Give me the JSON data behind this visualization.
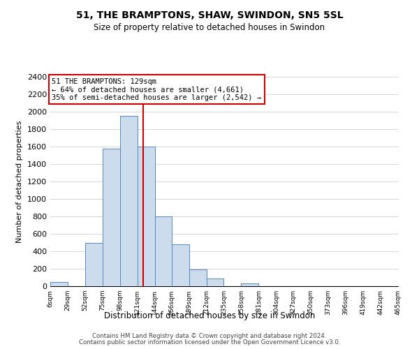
{
  "title": "51, THE BRAMPTONS, SHAW, SWINDON, SN5 5SL",
  "subtitle": "Size of property relative to detached houses in Swindon",
  "xlabel": "Distribution of detached houses by size in Swindon",
  "ylabel": "Number of detached properties",
  "bin_labels": [
    "6sqm",
    "29sqm",
    "52sqm",
    "75sqm",
    "98sqm",
    "121sqm",
    "144sqm",
    "166sqm",
    "189sqm",
    "212sqm",
    "235sqm",
    "258sqm",
    "281sqm",
    "304sqm",
    "327sqm",
    "350sqm",
    "373sqm",
    "396sqm",
    "419sqm",
    "442sqm",
    "465sqm"
  ],
  "bar_heights": [
    50,
    0,
    500,
    1580,
    1950,
    1600,
    800,
    480,
    190,
    90,
    0,
    35,
    0,
    0,
    0,
    0,
    0,
    0,
    0,
    0
  ],
  "bar_color": "#ccdcec",
  "bar_edge_color": "#5588bb",
  "property_line_x": 129,
  "property_line_color": "#cc0000",
  "annotation_title": "51 THE BRAMPTONS: 129sqm",
  "annotation_line1": "← 64% of detached houses are smaller (4,661)",
  "annotation_line2": "35% of semi-detached houses are larger (2,542) →",
  "annotation_box_color": "#ffffff",
  "annotation_box_edge_color": "#cc0000",
  "ylim": [
    0,
    2400
  ],
  "yticks": [
    0,
    200,
    400,
    600,
    800,
    1000,
    1200,
    1400,
    1600,
    1800,
    2000,
    2200,
    2400
  ],
  "footer_line1": "Contains HM Land Registry data © Crown copyright and database right 2024.",
  "footer_line2": "Contains public sector information licensed under the Open Government Licence v3.0.",
  "bin_edges": [
    6,
    29,
    52,
    75,
    98,
    121,
    144,
    166,
    189,
    212,
    235,
    258,
    281,
    304,
    327,
    350,
    373,
    396,
    419,
    442,
    465
  ]
}
